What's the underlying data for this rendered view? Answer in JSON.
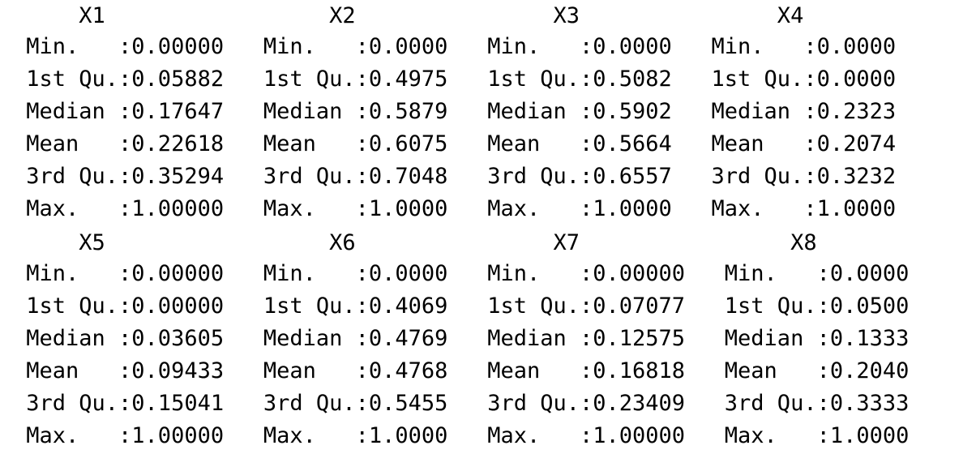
{
  "console": {
    "top_block": {
      "header_line": "     X1                 X2               X3               X4        ",
      "rows": [
        " Min.   :0.00000   Min.   :0.0000   Min.   :0.0000   Min.   :0.0000  ",
        " 1st Qu.:0.05882   1st Qu.:0.4975   1st Qu.:0.5082   1st Qu.:0.0000  ",
        " Median :0.17647   Median :0.5879   Median :0.5902   Median :0.2323  ",
        " Mean   :0.22618   Mean   :0.6075   Mean   :0.5664   Mean   :0.2074  ",
        " 3rd Qu.:0.35294   3rd Qu.:0.7048   3rd Qu.:0.6557   3rd Qu.:0.3232  ",
        " Max.   :1.00000   Max.   :1.0000   Max.   :1.0000   Max.   :1.0000  "
      ]
    },
    "bottom_block": {
      "header_line": "     X5                 X6               X7                X8       ",
      "rows": [
        " Min.   :0.00000   Min.   :0.0000   Min.   :0.00000   Min.   :0.0000  ",
        " 1st Qu.:0.00000   1st Qu.:0.4069   1st Qu.:0.07077   1st Qu.:0.0500  ",
        " Median :0.03605   Median :0.4769   Median :0.12575   Median :0.1333  ",
        " Mean   :0.09433   Mean   :0.4768   Mean   :0.16818   Mean   :0.2040  ",
        " 3rd Qu.:0.15041   3rd Qu.:0.5455   3rd Qu.:0.23409   3rd Qu.:0.3333  ",
        " Max.   :1.00000   Max.   :1.0000   Max.   :1.00000   Max.   :1.0000  "
      ]
    }
  }
}
